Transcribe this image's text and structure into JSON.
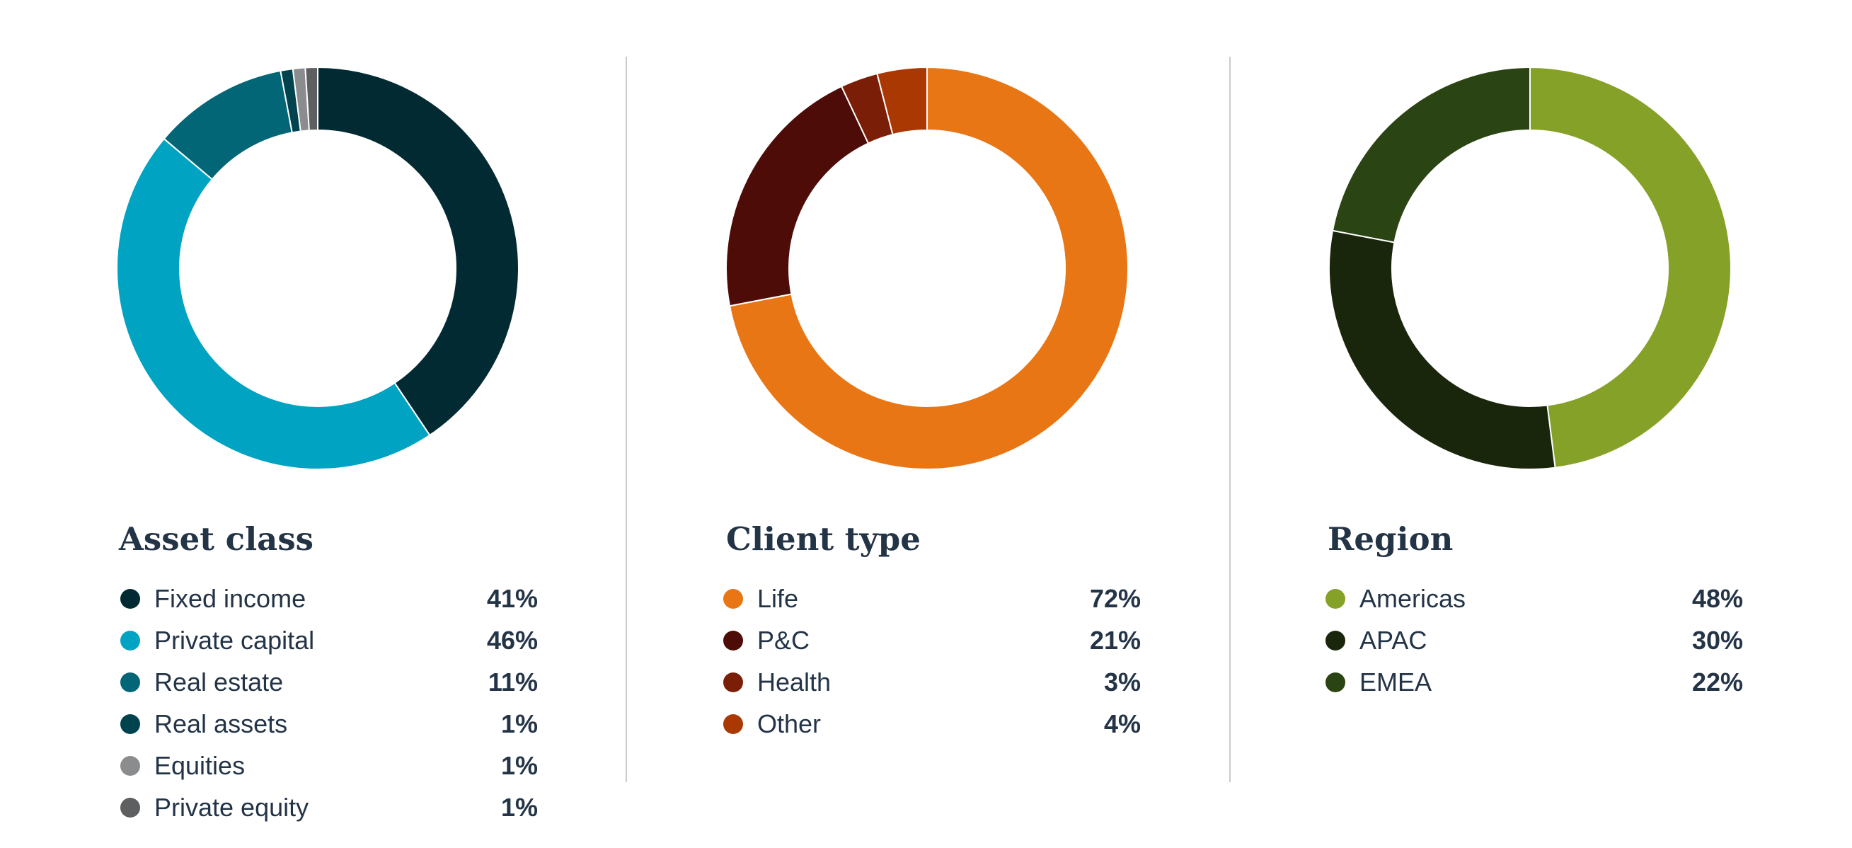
{
  "chart_data": [
    {
      "type": "pie",
      "title": "Asset class",
      "categories": [
        "Fixed income",
        "Private capital",
        "Real estate",
        "Real assets",
        "Equities",
        "Private equity"
      ],
      "values": [
        41,
        46,
        11,
        1,
        1,
        1
      ],
      "labels": [
        "41%",
        "46%",
        "11%",
        "1%",
        "1%",
        "1%"
      ],
      "colors": [
        "#022a33",
        "#00a3c2",
        "#036677",
        "#00434f",
        "#8a8c8e",
        "#5e5f61"
      ],
      "donut": true,
      "legend": "bottom"
    },
    {
      "type": "pie",
      "title": "Client type",
      "categories": [
        "Life",
        "P&C",
        "Health",
        "Other"
      ],
      "values": [
        72,
        21,
        3,
        4
      ],
      "labels": [
        "72%",
        "21%",
        "3%",
        "4%"
      ],
      "colors": [
        "#e87614",
        "#4d0c07",
        "#7a1e07",
        "#a93803"
      ],
      "donut": true,
      "legend": "bottom"
    },
    {
      "type": "pie",
      "title": "Region",
      "categories": [
        "Americas",
        "APAC",
        "EMEA"
      ],
      "values": [
        48,
        30,
        22
      ],
      "labels": [
        "48%",
        "30%",
        "22%"
      ],
      "colors": [
        "#86a128",
        "#1a260b",
        "#2b4413"
      ],
      "donut": true,
      "legend": "bottom"
    }
  ]
}
